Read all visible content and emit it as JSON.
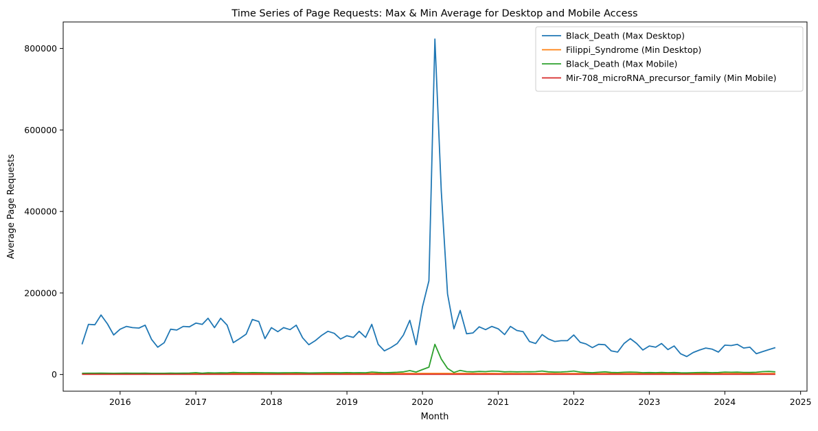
{
  "chart_data": {
    "type": "line",
    "title": "Time Series of Page Requests: Max & Min Average for Desktop and Mobile Access",
    "xlabel": "Month",
    "ylabel": "Average Page Requests",
    "xlim": [
      "2015-04-01",
      "2025-02-01"
    ],
    "ylim": [
      -41000,
      865000
    ],
    "x_ticks": [
      "2016",
      "2017",
      "2018",
      "2019",
      "2020",
      "2021",
      "2022",
      "2023",
      "2024",
      "2025"
    ],
    "y_ticks": [
      0,
      200000,
      400000,
      600000,
      800000
    ],
    "legend_position": "top-right",
    "grid": false,
    "x_start": "2015-07",
    "series": [
      {
        "name": "Black_Death (Max Desktop)",
        "color": "#1f77b4",
        "values": [
          74000,
          123000,
          122000,
          146000,
          124000,
          97000,
          111000,
          118000,
          115000,
          114000,
          121000,
          86000,
          67000,
          78000,
          111000,
          109000,
          118000,
          117000,
          126000,
          123000,
          138000,
          115000,
          138000,
          121000,
          78000,
          88000,
          99000,
          135000,
          130000,
          88000,
          115000,
          105000,
          115000,
          110000,
          121000,
          90000,
          73000,
          83000,
          96000,
          106000,
          101000,
          87000,
          95000,
          91000,
          106000,
          91000,
          123000,
          74000,
          58000,
          66000,
          76000,
          97000,
          133000,
          73000,
          166000,
          230000,
          823000,
          450000,
          198000,
          112000,
          157000,
          100000,
          102000,
          117000,
          110000,
          118000,
          112000,
          98000,
          118000,
          108000,
          105000,
          81000,
          76000,
          98000,
          87000,
          81000,
          83000,
          83000,
          97000,
          79000,
          75000,
          66000,
          74000,
          73000,
          58000,
          55000,
          76000,
          88000,
          76000,
          60000,
          70000,
          67000,
          76000,
          61000,
          70000,
          51000,
          44000,
          54000,
          60000,
          65000,
          62000,
          55000,
          72000,
          71000,
          74000,
          65000,
          67000,
          51000,
          56000,
          61000,
          66000
        ]
      },
      {
        "name": "Filippi_Syndrome (Min Desktop)",
        "color": "#ff7f0e",
        "values": [
          2000,
          2200,
          2100,
          2300,
          2200,
          2100,
          2200,
          2300,
          2200,
          2100,
          2200,
          2200,
          2100,
          2200,
          2300,
          2200,
          2400,
          2300,
          2300,
          2200,
          2300,
          2300,
          2400,
          2300,
          2200,
          2300,
          2300,
          2400,
          2300,
          2200,
          2300,
          2300,
          2300,
          2200,
          2300,
          2300,
          2200,
          2300,
          2400,
          2300,
          2300,
          2200,
          2300,
          2300,
          2400,
          2300,
          2300,
          2200,
          2200,
          2300,
          2300,
          2400,
          2400,
          2300,
          2400,
          2400,
          2500,
          2400,
          2400,
          2300,
          2400,
          2400,
          2400,
          2300,
          2400,
          2400,
          2300,
          2300,
          2400,
          2300,
          2300,
          2200,
          2200,
          2300,
          2300,
          2300,
          2200,
          2200,
          2300,
          2200,
          2200,
          2200,
          2300,
          2200,
          2200,
          2200,
          2200,
          2300,
          2200,
          2200,
          2200,
          2200,
          2200,
          2200,
          2200,
          2100,
          2100,
          2100,
          2200,
          2200,
          2100,
          2100,
          2200,
          2200,
          2200,
          2100,
          2100,
          2100,
          2200,
          2200,
          2200
        ]
      },
      {
        "name": "Black_Death (Max Mobile)",
        "color": "#2ca02c",
        "values": [
          3000,
          3200,
          3100,
          3500,
          3200,
          2900,
          3100,
          3300,
          3200,
          3100,
          3300,
          3000,
          2900,
          3000,
          3300,
          3200,
          3500,
          3600,
          4500,
          3200,
          4200,
          3800,
          4200,
          3900,
          5000,
          4400,
          4300,
          4700,
          4500,
          4300,
          4200,
          3900,
          4200,
          4300,
          4500,
          4100,
          3800,
          4000,
          4300,
          4500,
          4400,
          4200,
          4700,
          4300,
          4500,
          4300,
          6000,
          5000,
          4500,
          4800,
          5500,
          6500,
          9500,
          6000,
          12000,
          18000,
          74000,
          38000,
          15000,
          5000,
          10000,
          7000,
          6500,
          7500,
          7000,
          8500,
          8000,
          6500,
          7000,
          6500,
          6800,
          6700,
          7000,
          8500,
          6500,
          5800,
          6200,
          7000,
          8500,
          6000,
          5000,
          4500,
          5500,
          6500,
          5000,
          4700,
          5500,
          6000,
          5500,
          4500,
          4800,
          4500,
          5000,
          4500,
          4800,
          4200,
          4000,
          4500,
          4800,
          5000,
          4500,
          4800,
          6000,
          5500,
          5800,
          5200,
          5000,
          5500,
          7000,
          7500,
          6500
        ]
      },
      {
        "name": "Mir-708_microRNA_precursor_family (Min Mobile)",
        "color": "#d62728",
        "values": [
          500,
          500,
          500,
          500,
          500,
          500,
          500,
          500,
          500,
          500,
          500,
          500,
          500,
          500,
          500,
          500,
          500,
          500,
          500,
          500,
          500,
          500,
          500,
          500,
          500,
          500,
          500,
          500,
          500,
          500,
          500,
          500,
          500,
          500,
          500,
          500,
          500,
          500,
          500,
          500,
          500,
          500,
          500,
          500,
          500,
          500,
          500,
          500,
          500,
          500,
          500,
          500,
          500,
          500,
          500,
          500,
          500,
          500,
          500,
          500,
          500,
          500,
          500,
          500,
          500,
          500,
          500,
          500,
          500,
          500,
          500,
          500,
          500,
          500,
          500,
          500,
          500,
          500,
          500,
          500,
          500,
          500,
          500,
          500,
          500,
          500,
          500,
          500,
          500,
          500,
          500,
          500,
          500,
          500,
          500,
          500,
          500,
          500,
          500,
          500,
          500,
          500,
          500,
          500,
          500,
          500,
          500,
          500,
          500,
          500,
          500
        ]
      }
    ]
  }
}
